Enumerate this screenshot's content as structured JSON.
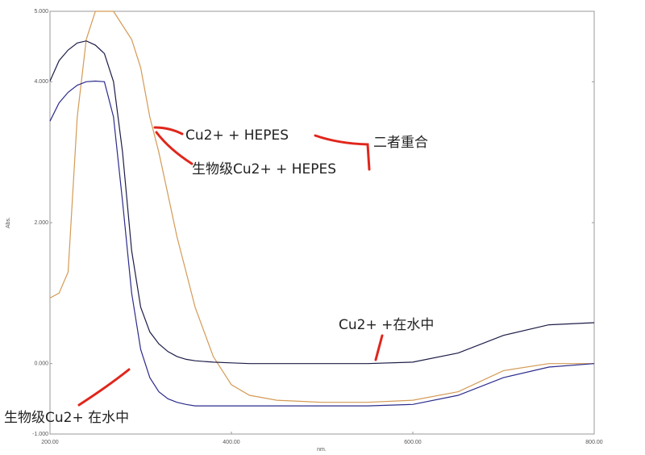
{
  "chart_data": {
    "type": "line",
    "x_label": "nm.",
    "y_label": "Abs.",
    "x": [
      200,
      210,
      220,
      230,
      240,
      250,
      260,
      270,
      280,
      290,
      300,
      310,
      320,
      330,
      340,
      350,
      360,
      380,
      400,
      420,
      450,
      500,
      550,
      600,
      650,
      700,
      750,
      800
    ],
    "series": [
      {
        "color": "#d49a55",
        "values": [
          0.93,
          1.0,
          1.3,
          3.5,
          4.6,
          5.0,
          5.0,
          5.0,
          4.8,
          4.6,
          4.2,
          3.5,
          3.0,
          2.4,
          1.8,
          1.3,
          0.8,
          0.1,
          -0.3,
          -0.45,
          -0.52,
          -0.55,
          -0.55,
          -0.52,
          -0.4,
          -0.1,
          0.0,
          0.0
        ]
      },
      {
        "color": "#1c1c48",
        "values": [
          4.01,
          4.3,
          4.45,
          4.55,
          4.58,
          4.52,
          4.4,
          4.0,
          3.0,
          1.6,
          0.8,
          0.45,
          0.28,
          0.17,
          0.1,
          0.06,
          0.04,
          0.02,
          0.01,
          0.0,
          0.0,
          0.0,
          0.0,
          0.02,
          0.15,
          0.4,
          0.55,
          0.58
        ]
      },
      {
        "color": "#2b2b8c",
        "values": [
          3.44,
          3.7,
          3.85,
          3.95,
          4.0,
          4.01,
          4.0,
          3.5,
          2.3,
          1.0,
          0.2,
          -0.2,
          -0.4,
          -0.5,
          -0.55,
          -0.58,
          -0.6,
          -0.6,
          -0.6,
          -0.6,
          -0.6,
          -0.6,
          -0.6,
          -0.58,
          -0.45,
          -0.2,
          -0.05,
          0.0
        ]
      }
    ],
    "xlim": [
      200,
      800
    ],
    "xticks": [
      {
        "value": 200,
        "label": "200.00"
      },
      {
        "value": 400,
        "label": "400.00"
      },
      {
        "value": 600,
        "label": "600.00"
      },
      {
        "value": 800,
        "label": "800.00"
      }
    ],
    "ylim": [
      -1,
      5
    ],
    "yticks": [
      {
        "value": -1,
        "label": "-1.000"
      },
      {
        "value": 0,
        "label": "0.000"
      },
      {
        "value": 2,
        "label": "2.000"
      },
      {
        "value": 4,
        "label": "4.000"
      },
      {
        "value": 5,
        "label": "5.000"
      }
    ],
    "annotations": [
      "Cu2+ + HEPES",
      "生物级Cu2+ + HEPES",
      "二者重合",
      "Cu2+ +在水中",
      "生物级Cu2+ 在水中"
    ]
  }
}
